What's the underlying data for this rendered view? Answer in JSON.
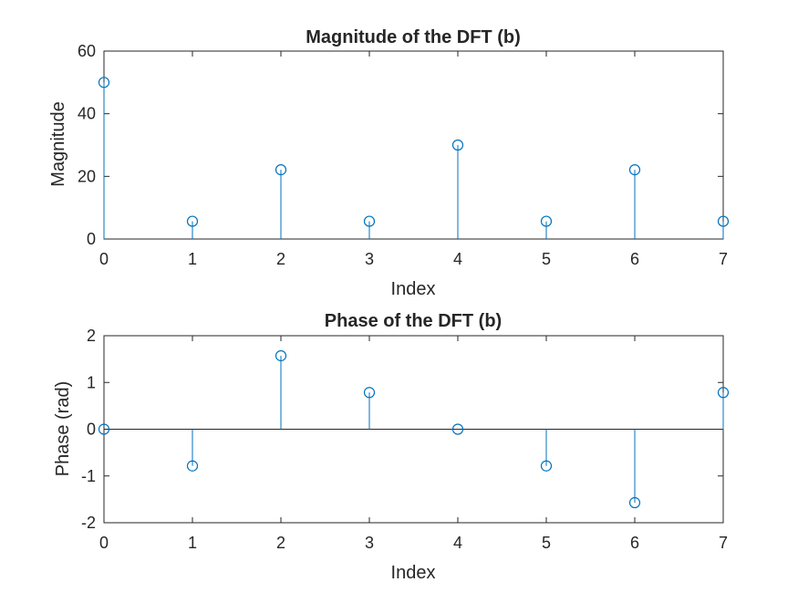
{
  "chart_data": [
    {
      "type": "stem",
      "title": "Magnitude of the DFT (b)",
      "xlabel": "Index",
      "ylabel": "Magnitude",
      "xlim": [
        0,
        7
      ],
      "ylim": [
        0,
        60
      ],
      "xticks": [
        0,
        1,
        2,
        3,
        4,
        5,
        6,
        7
      ],
      "yticks": [
        0,
        20,
        40,
        60
      ],
      "baseline": false,
      "x": [
        0,
        1,
        2,
        3,
        4,
        5,
        6,
        7
      ],
      "y": [
        50,
        5.66,
        22.1,
        5.66,
        30,
        5.66,
        22.1,
        5.66
      ],
      "color": "#0072BD"
    },
    {
      "type": "stem",
      "title": "Phase of the DFT (b)",
      "xlabel": "Index",
      "ylabel": "Phase (rad)",
      "xlim": [
        0,
        7
      ],
      "ylim": [
        -2,
        2
      ],
      "xticks": [
        0,
        1,
        2,
        3,
        4,
        5,
        6,
        7
      ],
      "yticks": [
        -2,
        -1,
        0,
        1,
        2
      ],
      "baseline": true,
      "x": [
        0,
        1,
        2,
        3,
        4,
        5,
        6,
        7
      ],
      "y": [
        0,
        -0.785,
        1.571,
        0.785,
        0,
        -0.785,
        -1.571,
        0.785
      ],
      "color": "#0072BD"
    }
  ]
}
